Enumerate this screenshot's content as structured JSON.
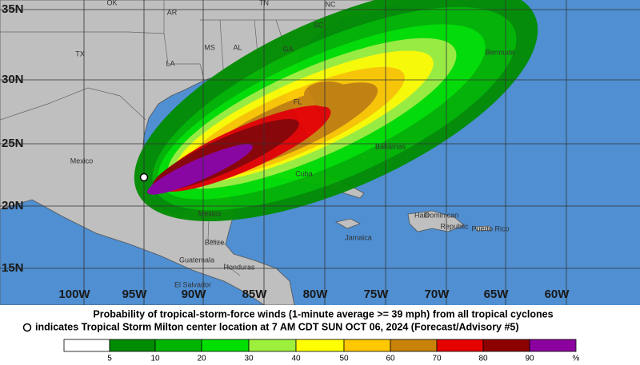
{
  "map": {
    "lat_labels": [
      "35N",
      "30N",
      "25N",
      "20N",
      "15N"
    ],
    "lon_labels": [
      "100W",
      "95W",
      "90W",
      "85W",
      "80W",
      "75W",
      "70W",
      "65W",
      "60W"
    ],
    "places": [
      "OK",
      "AR",
      "TN",
      "NC",
      "SC",
      "GA",
      "AL",
      "MS",
      "LA",
      "TX",
      "FL",
      "Mexico",
      "Bermuda",
      "Bahamas",
      "Cuba",
      "Haiti",
      "Dominican",
      "Republic",
      "Puerto Rico",
      "Jamaica",
      "Belize",
      "Guatemala",
      "Honduras",
      "El Salvador",
      "Mexico"
    ]
  },
  "caption": {
    "line1": "Probability of tropical-storm-force winds (1-minute average >= 39 mph) from all tropical cyclones",
    "line2": "indicates Tropical Storm Milton center location at 7 AM CDT SUN OCT 06, 2024 (Forecast/Advisory #5)"
  },
  "legend": {
    "labels": [
      "5",
      "10",
      "20",
      "30",
      "40",
      "50",
      "60",
      "70",
      "80",
      "90",
      "%"
    ],
    "colors": [
      "#ffffff",
      "#008c00",
      "#00b400",
      "#00e000",
      "#9cf03c",
      "#ffff00",
      "#ffc800",
      "#c8820a",
      "#e60000",
      "#8c0000",
      "#8c00a0"
    ]
  }
}
